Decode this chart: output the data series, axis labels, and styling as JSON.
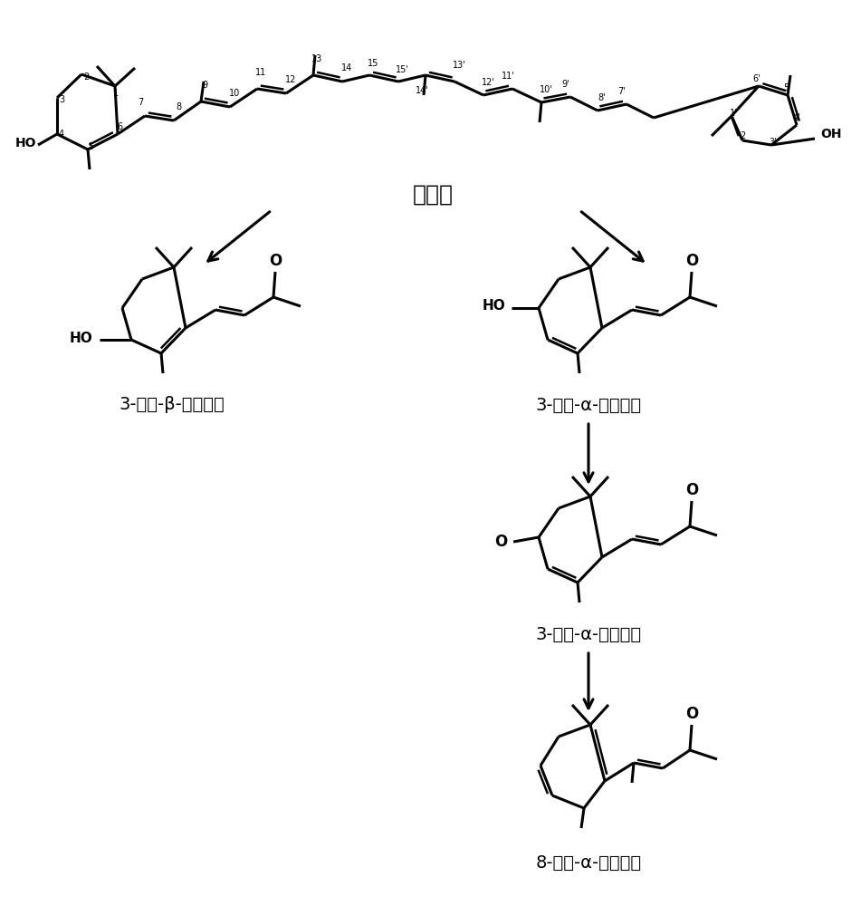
{
  "bg": "#ffffff",
  "fg": "#000000",
  "lw": 2.2,
  "label_lutein": "叶黄素",
  "label_beta": "3-羟基-β-紫罗兰酮",
  "label_alpha": "3-羟基-α-紫罗兰酮",
  "label_oxo": "3-氧化-α-紫罗兰酮",
  "label_methyl": "8-甲基-α-紫罗兰酮"
}
